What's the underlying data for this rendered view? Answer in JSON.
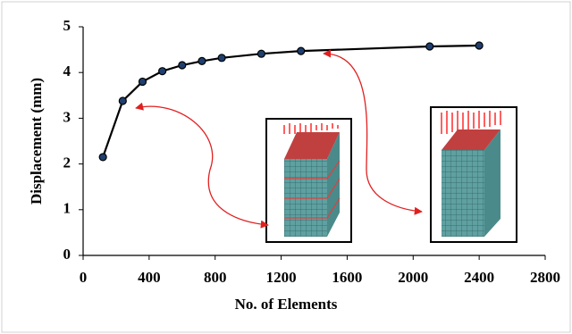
{
  "chart_data": {
    "type": "line",
    "x_label": "No. of Elements",
    "y_label": "Displacement (mm)",
    "x": [
      120,
      240,
      360,
      480,
      600,
      720,
      840,
      1080,
      1320,
      2100,
      2400
    ],
    "series": [
      {
        "color": "#000000",
        "marker_color": "#1f3f6e",
        "values": [
          2.15,
          3.38,
          3.8,
          4.03,
          4.16,
          4.25,
          4.32,
          4.41,
          4.47,
          4.57,
          4.59
        ]
      }
    ],
    "xlim": [
      0,
      2800
    ],
    "xticks": [
      0,
      400,
      800,
      1200,
      1600,
      2000,
      2400,
      2800
    ],
    "ylim": [
      0,
      5
    ],
    "yticks": [
      0,
      1,
      2,
      3,
      4,
      5
    ],
    "grid": false
  }
}
